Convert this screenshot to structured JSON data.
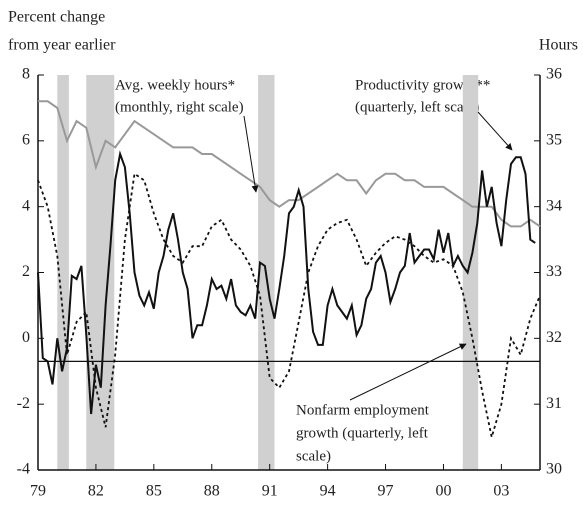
{
  "chart_data": {
    "type": "line",
    "y_label_lines": [
      "Percent change",
      "from year earlier"
    ],
    "y2_label": "Hours",
    "xlim": [
      1979,
      2005
    ],
    "xticks": [
      {
        "value": 1979,
        "label": "79"
      },
      {
        "value": 1982,
        "label": "82"
      },
      {
        "value": 1985,
        "label": "85"
      },
      {
        "value": 1988,
        "label": "88"
      },
      {
        "value": 1991,
        "label": "91"
      },
      {
        "value": 1994,
        "label": "94"
      },
      {
        "value": 1997,
        "label": "97"
      },
      {
        "value": 2000,
        "label": "00"
      },
      {
        "value": 2003,
        "label": "03"
      }
    ],
    "ylim": [
      -4,
      8
    ],
    "yticks": [
      -4,
      -2,
      0,
      2,
      4,
      6,
      8
    ],
    "y2lim": [
      30,
      36
    ],
    "y2ticks": [
      30,
      31,
      32,
      33,
      34,
      35,
      36
    ],
    "hline": -0.7,
    "shaded_ranges": [
      [
        1980.0,
        1980.6
      ],
      [
        1981.5,
        1982.95
      ],
      [
        1990.4,
        1991.25
      ],
      [
        2001.0,
        2001.8
      ]
    ],
    "shade_color": "#d0d0d0",
    "series": [
      {
        "name_lines": [
          "Avg. weekly hours*",
          "(monthly, right scale)"
        ],
        "color": "#999999",
        "dash": "solid",
        "axis": "y2",
        "x": [
          1979,
          1979.5,
          1980,
          1980.5,
          1981,
          1981.5,
          1982,
          1982.5,
          1983,
          1983.5,
          1984,
          1984.5,
          1985,
          1985.5,
          1986,
          1986.5,
          1987,
          1987.5,
          1988,
          1988.5,
          1989,
          1989.5,
          1990,
          1990.5,
          1991,
          1991.5,
          1992,
          1992.5,
          1993,
          1993.5,
          1994,
          1994.5,
          1995,
          1995.5,
          1996,
          1996.5,
          1997,
          1997.5,
          1998,
          1998.5,
          1999,
          1999.5,
          2000,
          2000.5,
          2001,
          2001.5,
          2002,
          2002.5,
          2003,
          2003.5,
          2004,
          2004.5,
          2005
        ],
        "values": [
          35.6,
          35.6,
          35.5,
          35.0,
          35.3,
          35.2,
          34.6,
          35.0,
          34.9,
          35.1,
          35.3,
          35.2,
          35.1,
          35.0,
          34.9,
          34.9,
          34.9,
          34.8,
          34.8,
          34.7,
          34.6,
          34.5,
          34.4,
          34.3,
          34.1,
          34.0,
          34.1,
          34.1,
          34.2,
          34.3,
          34.4,
          34.5,
          34.4,
          34.4,
          34.2,
          34.4,
          34.5,
          34.5,
          34.4,
          34.4,
          34.3,
          34.3,
          34.3,
          34.2,
          34.1,
          34.0,
          34.0,
          34.0,
          33.8,
          33.7,
          33.7,
          33.8,
          33.7
        ]
      },
      {
        "name_lines": [
          "Productivity growth**",
          "(quarterly, left scale)"
        ],
        "color": "#111111",
        "dash": "solid",
        "axis": "y",
        "x": [
          1979,
          1979.25,
          1979.5,
          1979.75,
          1980,
          1980.25,
          1980.5,
          1980.75,
          1981,
          1981.25,
          1981.5,
          1981.75,
          1982,
          1982.25,
          1982.5,
          1982.75,
          1983,
          1983.25,
          1983.5,
          1983.75,
          1984,
          1984.25,
          1984.5,
          1984.75,
          1985,
          1985.25,
          1985.5,
          1985.75,
          1986,
          1986.25,
          1986.5,
          1986.75,
          1987,
          1987.25,
          1987.5,
          1987.75,
          1988,
          1988.25,
          1988.5,
          1988.75,
          1989,
          1989.25,
          1989.5,
          1989.75,
          1990,
          1990.25,
          1990.5,
          1990.75,
          1991,
          1991.25,
          1991.5,
          1991.75,
          1992,
          1992.25,
          1992.5,
          1992.75,
          1993,
          1993.25,
          1993.5,
          1993.75,
          1994,
          1994.25,
          1994.5,
          1994.75,
          1995,
          1995.25,
          1995.5,
          1995.75,
          1996,
          1996.25,
          1996.5,
          1996.75,
          1997,
          1997.25,
          1997.5,
          1997.75,
          1998,
          1998.25,
          1998.5,
          1998.75,
          1999,
          1999.25,
          1999.5,
          1999.75,
          2000,
          2000.25,
          2000.5,
          2000.75,
          2001,
          2001.25,
          2001.5,
          2001.75,
          2002,
          2002.25,
          2002.5,
          2002.75,
          2003,
          2003.25,
          2003.5,
          2003.75,
          2004,
          2004.25,
          2004.5,
          2004.75
        ],
        "values": [
          2.0,
          -0.6,
          -0.7,
          -1.4,
          0,
          -1.0,
          -0.3,
          1.9,
          1.8,
          2.2,
          0.1,
          -2.3,
          -0.8,
          -1.5,
          1.0,
          2.8,
          4.8,
          5.6,
          5.2,
          3.8,
          2.0,
          1.3,
          1.0,
          1.4,
          0.9,
          2.0,
          2.5,
          3.3,
          3.8,
          3.0,
          2.0,
          1.5,
          0.0,
          0.4,
          0.4,
          1.0,
          1.8,
          1.5,
          1.6,
          1.2,
          1.8,
          1.0,
          0.8,
          0.7,
          1.0,
          0.6,
          2.3,
          2.2,
          1.2,
          0.6,
          1.5,
          2.5,
          3.8,
          4.0,
          4.5,
          4.0,
          1.5,
          0.2,
          -0.2,
          -0.2,
          1.0,
          1.5,
          1.0,
          0.8,
          0.6,
          1.0,
          0.1,
          0.4,
          1.2,
          1.5,
          2.3,
          2.5,
          2.0,
          1.1,
          1.5,
          2.0,
          2.2,
          3.2,
          2.3,
          2.5,
          2.7,
          2.7,
          2.4,
          3.3,
          2.6,
          3.2,
          2.2,
          2.5,
          2.2,
          2.0,
          2.6,
          3.5,
          5.1,
          4.0,
          4.6,
          3.5,
          2.8,
          4.2,
          5.3,
          5.5,
          5.5,
          5.0,
          3.0,
          2.9
        ]
      },
      {
        "name_lines": [
          "Nonfarm employment",
          "growth (quarterly, left",
          "scale)"
        ],
        "color": "#111111",
        "dash": "dotted",
        "axis": "y",
        "x": [
          1979,
          1979.5,
          1980,
          1980.5,
          1981,
          1981.5,
          1982,
          1982.5,
          1983,
          1983.5,
          1984,
          1984.5,
          1985,
          1985.5,
          1986,
          1986.5,
          1987,
          1987.5,
          1988,
          1988.5,
          1989,
          1989.5,
          1990,
          1990.5,
          1991,
          1991.5,
          1992,
          1992.5,
          1993,
          1993.5,
          1994,
          1994.5,
          1995,
          1995.5,
          1996,
          1996.5,
          1997,
          1997.5,
          1998,
          1998.5,
          1999,
          1999.5,
          2000,
          2000.5,
          2001,
          2001.5,
          2002,
          2002.5,
          2003,
          2003.5,
          2004,
          2004.5,
          2005
        ],
        "values": [
          4.8,
          4.0,
          2.5,
          -0.5,
          0.5,
          0.8,
          -1.5,
          -2.7,
          -0.5,
          3.0,
          5.0,
          4.8,
          3.8,
          3.0,
          2.5,
          2.3,
          2.8,
          2.8,
          3.4,
          3.6,
          3.0,
          2.7,
          2.2,
          1.3,
          -1.2,
          -1.5,
          -1.0,
          0.5,
          2.0,
          2.8,
          3.3,
          3.5,
          3.6,
          3.0,
          2.2,
          2.6,
          2.9,
          3.1,
          3.0,
          2.8,
          2.5,
          2.3,
          2.4,
          2.2,
          1.4,
          0.0,
          -1.6,
          -3.0,
          -2.0,
          0.0,
          -0.5,
          0.6,
          1.3
        ]
      }
    ]
  }
}
